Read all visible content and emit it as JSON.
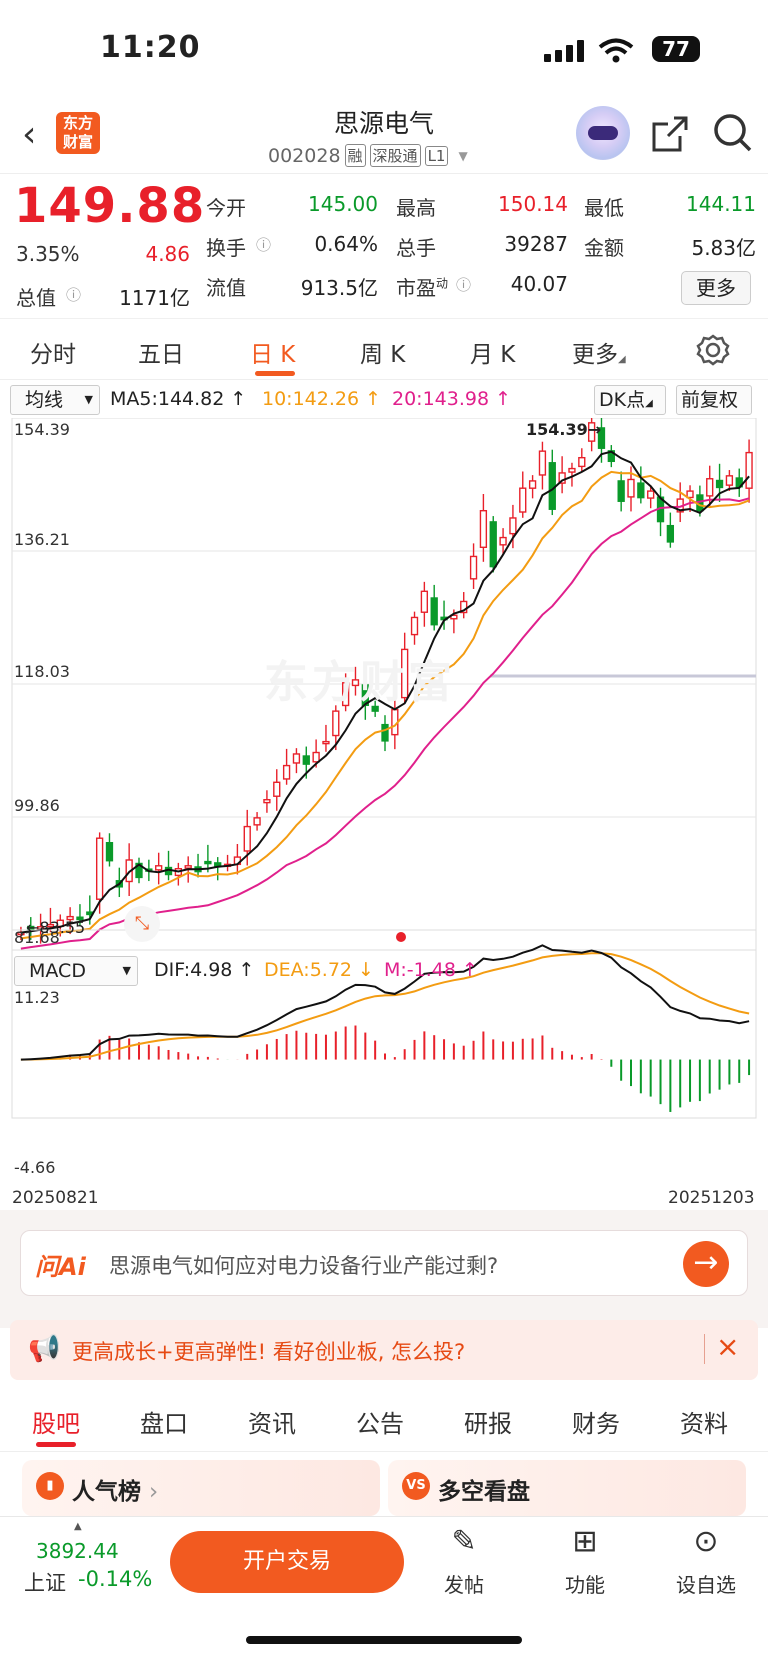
{
  "status_bar": {
    "time": "11:20",
    "battery": "77"
  },
  "header": {
    "logo": "东方财富",
    "stock_name": "思源电气",
    "stock_code": "002028",
    "tags": [
      "融",
      "深股通",
      "L1"
    ]
  },
  "quote": {
    "price": "149.88",
    "change_pct": "3.35%",
    "change": "4.86",
    "open_label": "今开",
    "open": "145.00",
    "high_label": "最高",
    "high": "150.14",
    "low_label": "最低",
    "low": "144.11",
    "turnover_label": "换手",
    "turnover": "0.64%",
    "volume_label": "总手",
    "volume": "39287",
    "amount_label": "金额",
    "amount": "5.83亿",
    "mktcap_label": "总值",
    "mktcap": "1171亿",
    "float_label": "流值",
    "float": "913.5亿",
    "pe_label": "市盈",
    "pe_sup": "动",
    "pe": "40.07",
    "more": "更多"
  },
  "period_tabs": [
    "分时",
    "五日",
    "日 K",
    "周 K",
    "月 K",
    "更多"
  ],
  "ma_row": {
    "selector": "均线",
    "ma5": "MA5:144.82",
    "ma10": "10:142.26",
    "ma20": "20:143.98",
    "dk": "DK点",
    "adjust": "前复权"
  },
  "chart_data": {
    "type": "candlestick",
    "y_ticks": [
      "154.39",
      "136.21",
      "118.03",
      "99.86",
      "81.68"
    ],
    "price_range": [
      81.68,
      154.39
    ],
    "max_label": "154.39",
    "min_label": "83.55",
    "start_date": "20250821",
    "end_date": "20251203",
    "closes": [
      83.8,
      84.2,
      84.6,
      84.9,
      85.5,
      86.0,
      85.6,
      86.3,
      96.8,
      93.7,
      90.1,
      93.8,
      91.4,
      92.3,
      93.0,
      91.8,
      92.6,
      93.0,
      92.2,
      93.5,
      93.0,
      93.2,
      94.2,
      98.4,
      99.6,
      102.1,
      104.5,
      106.8,
      108.4,
      107.0,
      108.6,
      110.1,
      114.3,
      118.2,
      118.6,
      115.1,
      114.3,
      110.2,
      114.5,
      122.8,
      127.2,
      130.8,
      126.2,
      126.9,
      127.5,
      129.4,
      135.6,
      141.9,
      134.2,
      138.2,
      140.9,
      145.0,
      146.0,
      150.1,
      142.1,
      147.1,
      147.7,
      149.2,
      154.0,
      150.5,
      148.7,
      143.2,
      146.2,
      143.7,
      144.6,
      140.4,
      137.6,
      143.5,
      144.6,
      141.9,
      146.3,
      145.1,
      146.7,
      145.2,
      149.9
    ],
    "colors": {
      "up": "#e8202a",
      "down": "#0a9a2a",
      "ma5": "#111111",
      "ma10": "#f39c12",
      "ma20": "#e0208c"
    },
    "macd": {
      "selector": "MACD",
      "dif_label": "DIF:4.98",
      "dea_label": "DEA:5.72",
      "m_label": "M:-1.48",
      "y_ticks": [
        "11.23",
        "-4.66"
      ],
      "range": [
        -4.66,
        11.23
      ]
    }
  },
  "ask": {
    "logo": "问Ai",
    "question": "思源电气如何应对电力设备行业产能过剩?"
  },
  "banner": {
    "text": "更高成长+更高弹性! 看好创业板, 怎么投?"
  },
  "section_tabs": [
    "股吧",
    "盘口",
    "资讯",
    "公告",
    "研报",
    "财务",
    "资料"
  ],
  "cards": {
    "popular": "人气榜",
    "vs": "多空看盘",
    "vs_icon": "VS"
  },
  "bottom_bar": {
    "index_value": "3892.44",
    "index_name": "上证",
    "index_change": "-0.14%",
    "trade": "开户交易",
    "post": "发帖",
    "functions": "功能",
    "watch": "设自选"
  }
}
